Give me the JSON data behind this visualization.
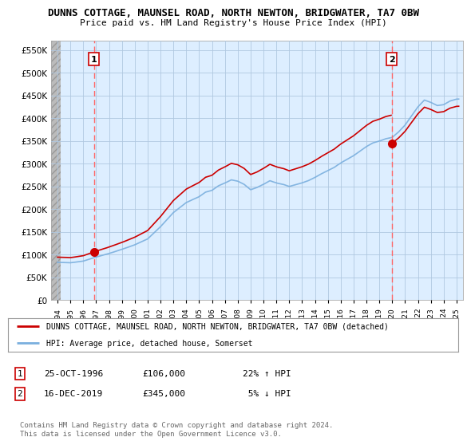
{
  "title": "DUNNS COTTAGE, MAUNSEL ROAD, NORTH NEWTON, BRIDGWATER, TA7 0BW",
  "subtitle": "Price paid vs. HM Land Registry's House Price Index (HPI)",
  "ylim": [
    0,
    570000
  ],
  "yticks": [
    0,
    50000,
    100000,
    150000,
    200000,
    250000,
    300000,
    350000,
    400000,
    450000,
    500000,
    550000
  ],
  "ytick_labels": [
    "£0",
    "£50K",
    "£100K",
    "£150K",
    "£200K",
    "£250K",
    "£300K",
    "£350K",
    "£400K",
    "£450K",
    "£500K",
    "£550K"
  ],
  "sale1_year": 1996.82,
  "sale1_price": 106000,
  "sale2_year": 2019.96,
  "sale2_price": 345000,
  "red_color": "#cc0000",
  "blue_color": "#7aafde",
  "plot_bg": "#ddeeff",
  "grid_color": "#b0c8e0",
  "dashed_color": "#ff6666",
  "hatch_color": "#c8c8c8",
  "legend1_text": "DUNNS COTTAGE, MAUNSEL ROAD, NORTH NEWTON, BRIDGWATER, TA7 0BW (detached)",
  "legend2_text": "HPI: Average price, detached house, Somerset",
  "footer": "Contains HM Land Registry data © Crown copyright and database right 2024.\nThis data is licensed under the Open Government Licence v3.0."
}
